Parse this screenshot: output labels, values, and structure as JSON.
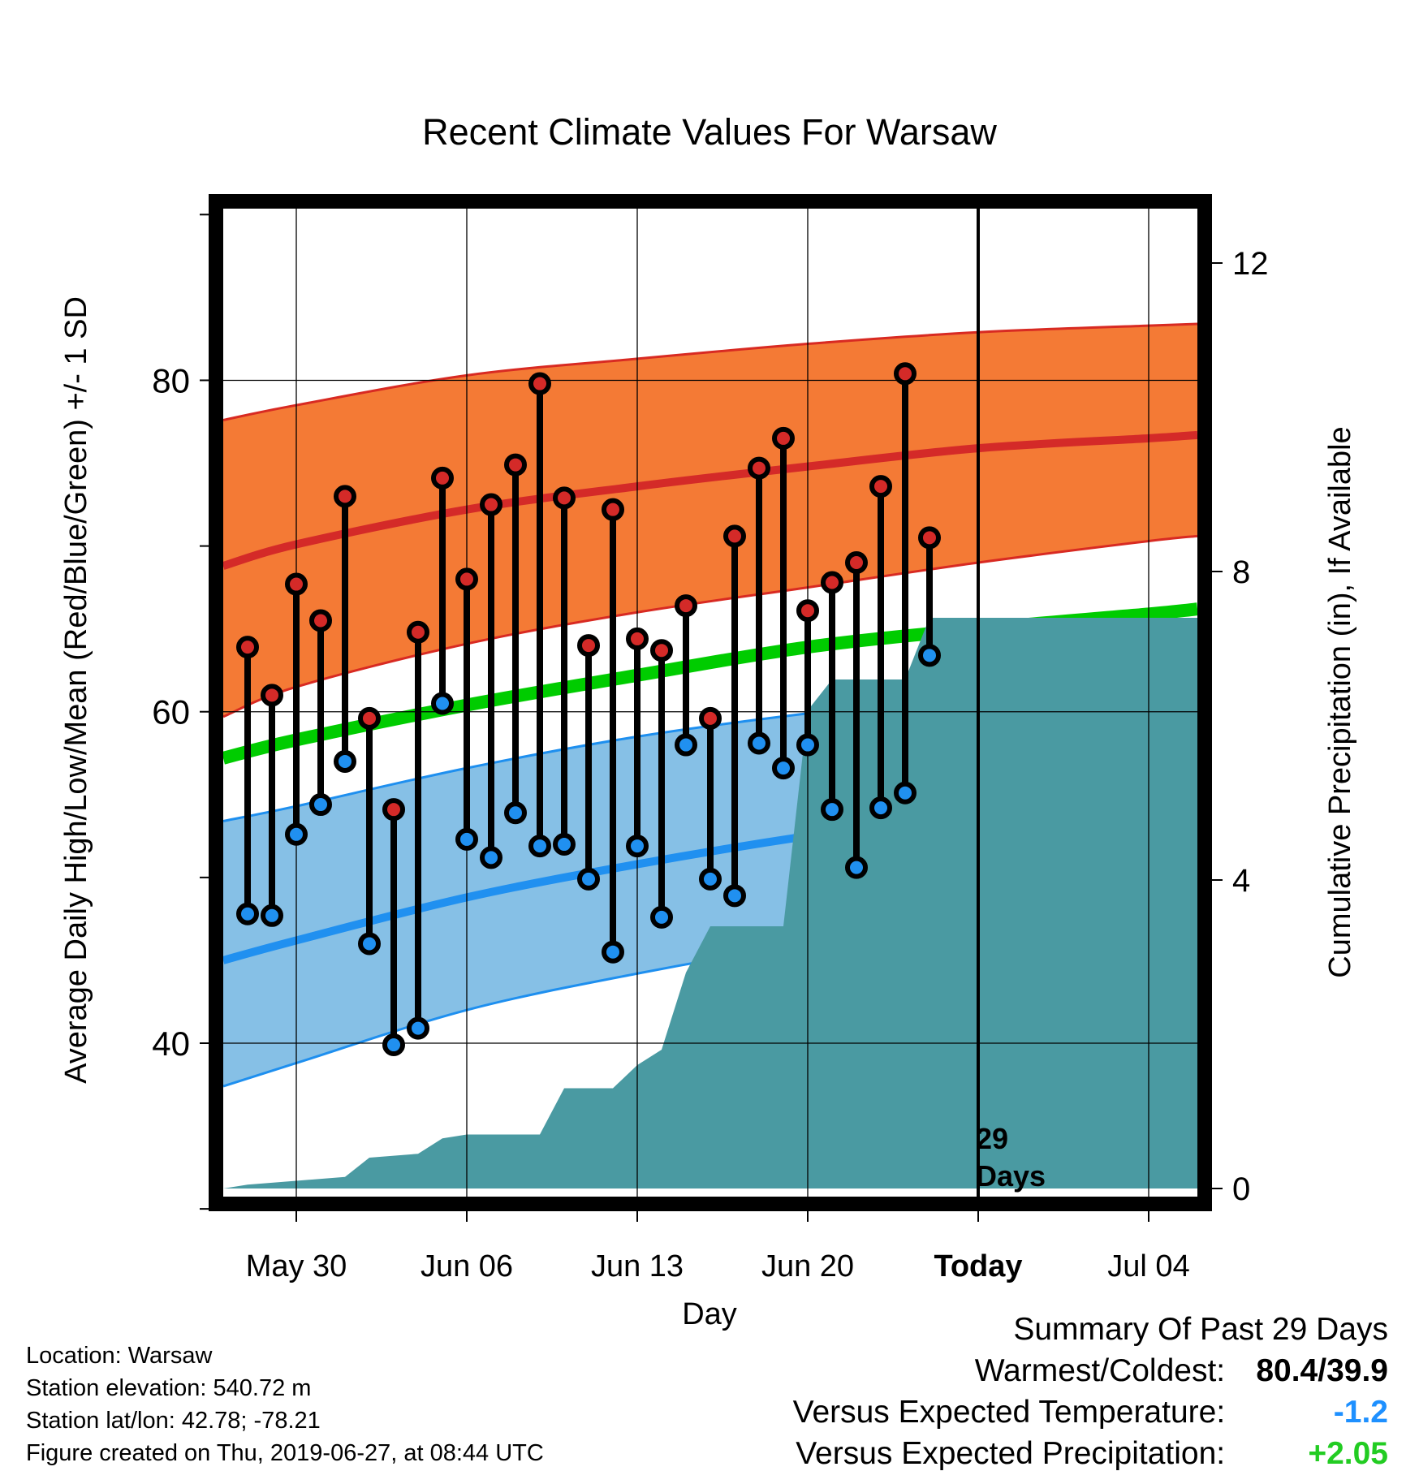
{
  "title": "Recent Climate Values For Warsaw",
  "x_axis_label": "Day",
  "y_axis_label_left": "Average Daily High/Low/Mean (Red/Blue/Green) +/- 1 SD",
  "y_axis_label_right": "Cumulative Precipitation (in), If Available",
  "today_marker_label": [
    "29",
    "Days"
  ],
  "info": {
    "location": "Location: Warsaw",
    "elevation": "Station elevation: 540.72 m",
    "latlon": "Station lat/lon: 42.78; -78.21",
    "created": "Figure created on Thu, 2019-06-27, at 08:44 UTC"
  },
  "summary": {
    "heading": "Summary Of Past 29 Days",
    "warm_cold_label": "Warmest/Coldest:",
    "warm_cold_value": "80.4/39.9",
    "temp_label": "Versus Expected Temperature:",
    "temp_value": "-1.2",
    "precip_label": "Versus Expected Precipitation:",
    "precip_value": "+2.05"
  },
  "colors": {
    "high_band": "#f47a35",
    "high_edge": "#d82a22",
    "high_mean": "#d42a28",
    "low_band": "#86c0e6",
    "low_edge": "#1e8fef",
    "low_mean": "#2090f0",
    "mean_line": "#00cc00",
    "precip_fill": "#4a9aa2",
    "high_dot": "#d42a28",
    "low_dot": "#2090f0",
    "temp_value_color": "#1e90ff",
    "precip_value_color": "#22cc22"
  },
  "chart_data": {
    "type": "line",
    "x_ticks": [
      "May 30",
      "Jun 06",
      "Jun 13",
      "Jun 20",
      "Today",
      "Jul 04"
    ],
    "x_tick_days": [
      0,
      7,
      14,
      21,
      28,
      35
    ],
    "x_range": [
      -3.3,
      37.3
    ],
    "y_left_range": [
      30.3,
      90.8
    ],
    "y_left_ticks": [
      40,
      60,
      80
    ],
    "y_right_range": [
      -0.2,
      12.8
    ],
    "y_right_ticks": [
      0,
      4,
      8,
      12
    ],
    "grid": true,
    "today_day": 28,
    "observed": {
      "days": [
        -2,
        -1,
        0,
        1,
        2,
        3,
        4,
        5,
        6,
        7,
        8,
        9,
        10,
        11,
        12,
        13,
        14,
        15,
        16,
        17,
        18,
        19,
        20,
        21,
        22,
        23,
        24,
        25,
        26
      ],
      "high": [
        63.9,
        61.0,
        67.7,
        65.5,
        73.0,
        59.6,
        54.1,
        64.8,
        74.1,
        68.0,
        72.5,
        74.9,
        79.8,
        72.9,
        64.0,
        72.2,
        64.4,
        63.7,
        66.4,
        59.6,
        70.6,
        74.7,
        76.5,
        66.1,
        67.8,
        69.0,
        73.6,
        80.4,
        70.5
      ],
      "low": [
        47.8,
        47.7,
        52.6,
        54.4,
        57.0,
        46.0,
        39.9,
        40.9,
        60.5,
        52.3,
        51.2,
        53.9,
        51.9,
        52.0,
        49.9,
        45.5,
        51.9,
        47.6,
        58.0,
        49.9,
        48.9,
        58.1,
        56.6,
        58.0,
        54.1,
        50.6,
        54.2,
        55.1,
        63.4
      ]
    },
    "normals": {
      "days": [
        -3,
        0,
        7,
        14,
        21,
        28,
        35,
        37
      ],
      "high_upper": [
        77.6,
        78.5,
        80.3,
        81.3,
        82.2,
        82.9,
        83.3,
        83.4
      ],
      "high_mean": [
        68.8,
        70.1,
        72.2,
        73.6,
        74.8,
        75.9,
        76.5,
        76.7
      ],
      "high_lower": [
        59.7,
        61.5,
        64.1,
        66.0,
        67.5,
        69.0,
        70.3,
        70.6
      ],
      "mean": [
        57.2,
        58.3,
        60.4,
        62.2,
        63.9,
        65.0,
        65.9,
        66.2
      ],
      "low_upper": [
        53.4,
        54.3,
        56.6,
        58.5,
        59.9,
        61.0,
        61.7,
        61.9
      ],
      "low_mean": [
        45.0,
        46.2,
        48.8,
        50.8,
        52.5,
        53.9,
        54.9,
        55.2
      ],
      "low_lower": [
        37.4,
        38.8,
        42.0,
        44.2,
        46.0,
        47.4,
        48.5,
        48.7
      ]
    },
    "precip": {
      "days": [
        -3,
        -2,
        0,
        2,
        3,
        5,
        6,
        7,
        9,
        10,
        11,
        13,
        14,
        15,
        16,
        17,
        19,
        20,
        21,
        22,
        23,
        24,
        25,
        26,
        27,
        36,
        37
      ],
      "values": [
        0,
        0.05,
        0.1,
        0.15,
        0.4,
        0.45,
        0.65,
        0.7,
        0.7,
        0.7,
        1.3,
        1.3,
        1.6,
        1.8,
        2.8,
        3.4,
        3.4,
        3.4,
        6.2,
        6.6,
        6.6,
        6.6,
        6.6,
        7.4,
        7.4,
        7.4,
        7.4
      ]
    }
  }
}
